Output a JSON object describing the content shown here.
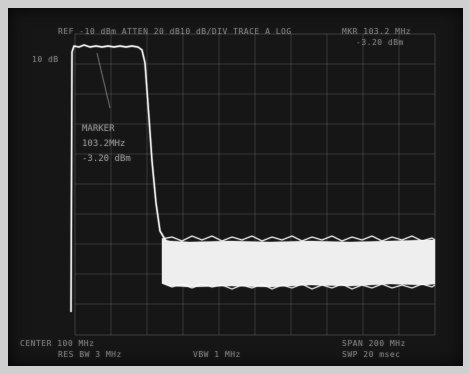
{
  "screen": {
    "top_left_readout": "REF -10 dBm   ATTEN 20 dB",
    "top_center_readout": "10 dB/DIV   TRACE A   LOG",
    "top_right_readout": "MKR 103.2 MHz",
    "top_right_sub": "-3.20 dBm",
    "left_scale_label": "10 dB",
    "marker_readout": {
      "label": "MARKER",
      "frequency": "103.2MHz",
      "amplitude": "-3.20 dBm"
    },
    "bottom_left_readout": "CENTER 100 MHz",
    "bottom_left_sub": "RES BW 3 MHz",
    "bottom_center_readout": "VBW 1 MHz",
    "bottom_right_readout": "SPAN 200 MHz",
    "bottom_right_sub": "SWP 20 msec"
  },
  "trace": {
    "description": "high level band then steep roll-off into noise floor",
    "top_level_fraction": 0.09,
    "noise_floor_fraction": 0.76,
    "rolloff_start_fraction": 0.29,
    "rolloff_end_fraction": 0.37
  },
  "colors": {
    "screen": "#161616",
    "grid": "#8a8a8a",
    "trace": "#f2f2f2",
    "frame": "#cfcfcf"
  }
}
